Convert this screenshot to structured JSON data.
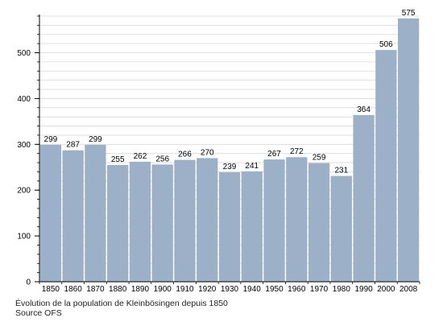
{
  "chart_data": {
    "type": "bar",
    "categories": [
      "1850",
      "1860",
      "1870",
      "1880",
      "1890",
      "1900",
      "1910",
      "1920",
      "1930",
      "1940",
      "1950",
      "1960",
      "1970",
      "1980",
      "1990",
      "2000",
      "2008"
    ],
    "values": [
      299,
      287,
      299,
      255,
      262,
      256,
      266,
      270,
      239,
      241,
      267,
      272,
      259,
      231,
      364,
      506,
      575
    ],
    "ylim": [
      0,
      580
    ],
    "yticks": [
      0,
      100,
      200,
      300,
      400,
      500
    ],
    "minor_tick_step": 20,
    "grid": true,
    "bar_color": "#9cb1c8",
    "grid_color": "#d8d8d8",
    "caption": "Évolution de la population de Kleinbösingen depuis 1850",
    "source": "Source OFS"
  }
}
